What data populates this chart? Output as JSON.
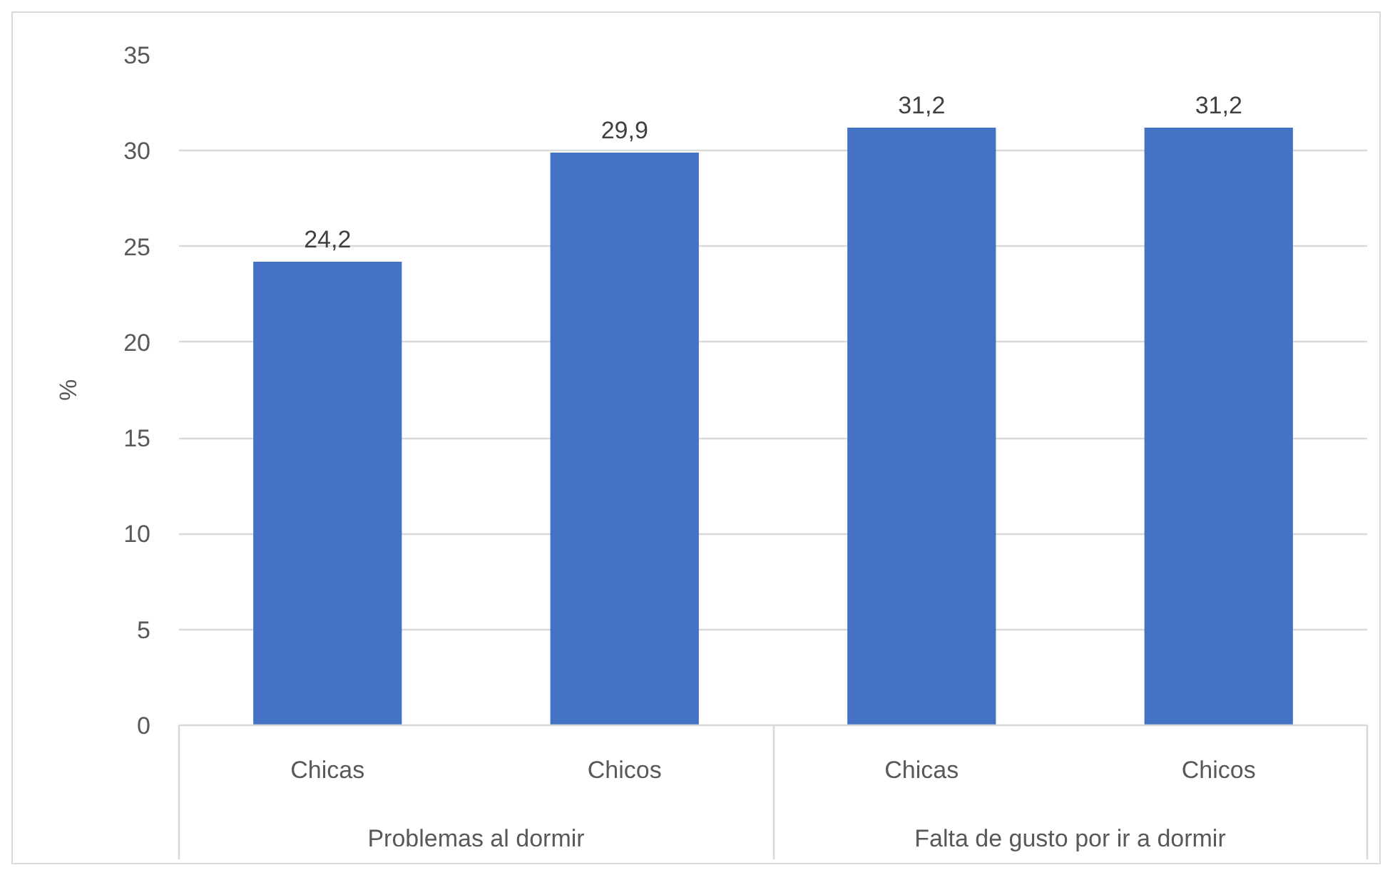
{
  "chart_data": {
    "type": "bar",
    "categories": [
      "Chicas",
      "Chicos",
      "Chicas",
      "Chicos"
    ],
    "values": [
      24.2,
      29.9,
      31.2,
      31.2
    ],
    "color": "#4472c4",
    "value_labels": [
      "24,2",
      "29,9",
      "31,2",
      "31,2"
    ],
    "ylabel": "%",
    "ylim": [
      0,
      35
    ],
    "yticks": [
      0,
      5,
      10,
      15,
      20,
      25,
      30,
      35
    ],
    "grid": "y",
    "annotations": [
      "Problemas al dormir",
      "Falta de gusto por ir a dormir"
    ]
  }
}
